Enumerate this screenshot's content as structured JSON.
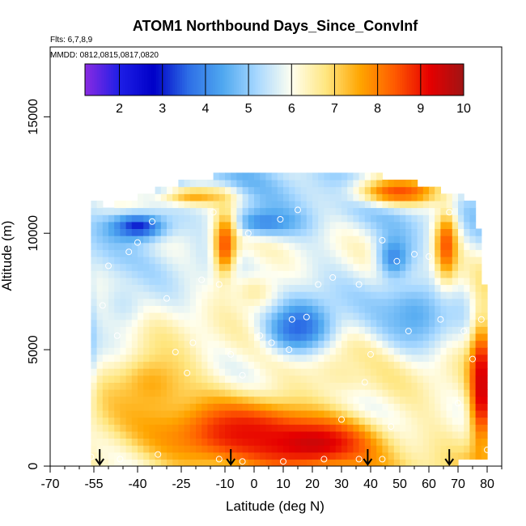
{
  "chart_data": {
    "type": "heatmap",
    "title": "ATOM1 Northbound Days_Since_ConvInf",
    "annotations": [
      "Flts: 6,7,8,9",
      "MMDD: 0812,0815,0817,0820"
    ],
    "xlabel": "Latitude (deg N)",
    "ylabel": "Altitude (m)",
    "xlim": [
      -70,
      85
    ],
    "ylim": [
      0,
      18000
    ],
    "x_ticks": [
      -70,
      -55,
      -40,
      -25,
      -10,
      0,
      10,
      20,
      30,
      40,
      50,
      60,
      70,
      80
    ],
    "x_tick_labels": [
      "-70",
      "-55",
      "-40",
      "-25",
      "-10",
      "0",
      "10",
      "20",
      "30",
      "40",
      "50",
      "60",
      "70",
      "80"
    ],
    "y_ticks": [
      0,
      5000,
      10000,
      15000
    ],
    "y_tick_labels": [
      "0",
      "5000",
      "10000",
      "15000"
    ],
    "colorbar": {
      "range": [
        1.2,
        10
      ],
      "ticks": [
        2,
        3,
        4,
        5,
        6,
        7,
        8,
        9,
        10
      ],
      "tick_labels": [
        "2",
        "3",
        "4",
        "5",
        "6",
        "7",
        "8",
        "9",
        "10"
      ],
      "colors": [
        "#8a2be2",
        "#1e1ee6",
        "#0000c8",
        "#2d6ee6",
        "#4fa8f0",
        "#a8d8ff",
        "#fffff0",
        "#ffe680",
        "#ffa500",
        "#ff5a00",
        "#e60000",
        "#a01414"
      ]
    },
    "coverage": [
      {
        "lat": -56,
        "alt_min": 0,
        "alt_max": 11400
      },
      {
        "lat": -50,
        "alt_min": 0,
        "alt_max": 11000
      },
      {
        "lat": -40,
        "alt_min": 0,
        "alt_max": 11400
      },
      {
        "lat": -30,
        "alt_min": 0,
        "alt_max": 11900
      },
      {
        "lat": -10,
        "alt_min": 0,
        "alt_max": 12400
      },
      {
        "lat": 40,
        "alt_min": 0,
        "alt_max": 12400
      },
      {
        "lat": 60,
        "alt_min": 0,
        "alt_max": 11900
      },
      {
        "lat": 76,
        "alt_min": 500,
        "alt_max": 11200
      },
      {
        "lat": 80,
        "alt_min": 500,
        "alt_max": 6500
      }
    ],
    "regions": [
      {
        "lat_center": -5,
        "alt_center": 1500,
        "lat_width": 55,
        "alt_width": 3000,
        "value": 9
      },
      {
        "lat_center": 20,
        "alt_center": 1000,
        "lat_width": 40,
        "alt_width": 2000,
        "value": 9.5
      },
      {
        "lat_center": -35,
        "alt_center": 3500,
        "lat_width": 30,
        "alt_width": 3500,
        "value": 7.5
      },
      {
        "lat_center": 78,
        "alt_center": 3500,
        "lat_width": 8,
        "alt_width": 6000,
        "value": 9.5
      },
      {
        "lat_center": -61,
        "alt_center": 5500,
        "lat_width": 10,
        "alt_width": 5000,
        "value": 3
      },
      {
        "lat_center": -40,
        "alt_center": 10300,
        "lat_width": 20,
        "alt_width": 1200,
        "value": 3
      },
      {
        "lat_center": 4,
        "alt_center": 10500,
        "lat_width": 25,
        "alt_width": 1200,
        "value": 4
      },
      {
        "lat_center": 15,
        "alt_center": 6000,
        "lat_width": 25,
        "alt_width": 2500,
        "value": 3.5
      },
      {
        "lat_center": 55,
        "alt_center": 6500,
        "lat_width": 25,
        "alt_width": 3000,
        "value": 4.5
      },
      {
        "lat_center": 48,
        "alt_center": 9000,
        "lat_width": 12,
        "alt_width": 2000,
        "value": 4
      },
      {
        "lat_center": 50,
        "alt_center": 11800,
        "lat_width": 30,
        "alt_width": 1200,
        "value": 8.5
      },
      {
        "lat_center": -20,
        "alt_center": 11600,
        "lat_width": 25,
        "alt_width": 800,
        "value": 7.5
      },
      {
        "lat_center": -10,
        "alt_center": 9500,
        "lat_width": 8,
        "alt_width": 3000,
        "value": 8.5
      },
      {
        "lat_center": 0,
        "alt_center": 7500,
        "lat_width": 20,
        "alt_width": 2000,
        "value": 6.5
      },
      {
        "lat_center": -45,
        "alt_center": 7000,
        "lat_width": 20,
        "alt_width": 3000,
        "value": 5.5
      },
      {
        "lat_center": 30,
        "alt_center": 4000,
        "lat_width": 25,
        "alt_width": 2000,
        "value": 6.5
      },
      {
        "lat_center": 66,
        "alt_center": 9500,
        "lat_width": 8,
        "alt_width": 3000,
        "value": 8.5
      }
    ],
    "sample_points": [
      [
        -60,
        6000
      ],
      [
        -58,
        5600
      ],
      [
        -52,
        6900
      ],
      [
        -50,
        8600
      ],
      [
        -47,
        5600
      ],
      [
        -43,
        9200
      ],
      [
        -40,
        9600
      ],
      [
        -35,
        10500
      ],
      [
        -30,
        7200
      ],
      [
        -27,
        4900
      ],
      [
        -23,
        4000
      ],
      [
        -21,
        5300
      ],
      [
        -18,
        8000
      ],
      [
        -14,
        10900
      ],
      [
        -12,
        7800
      ],
      [
        -8,
        4800
      ],
      [
        -4,
        3900
      ],
      [
        -2,
        10000
      ],
      [
        2,
        5600
      ],
      [
        6,
        5300
      ],
      [
        9,
        10600
      ],
      [
        12,
        5000
      ],
      [
        13,
        6300
      ],
      [
        15,
        11000
      ],
      [
        18,
        6400
      ],
      [
        22,
        7800
      ],
      [
        27,
        8100
      ],
      [
        30,
        2000
      ],
      [
        36,
        7800
      ],
      [
        38,
        3600
      ],
      [
        40,
        4800
      ],
      [
        44,
        9700
      ],
      [
        47,
        1700
      ],
      [
        49,
        8800
      ],
      [
        53,
        5800
      ],
      [
        55,
        9100
      ],
      [
        60,
        9000
      ],
      [
        64,
        6300
      ],
      [
        67,
        10900
      ],
      [
        70,
        2700
      ],
      [
        72,
        5800
      ],
      [
        75,
        4600
      ],
      [
        78,
        6300
      ],
      [
        80,
        700
      ],
      [
        -56,
        400
      ],
      [
        -46,
        300
      ],
      [
        -33,
        500
      ],
      [
        -12,
        300
      ],
      [
        -4,
        200
      ],
      [
        10,
        200
      ],
      [
        24,
        300
      ],
      [
        36,
        300
      ],
      [
        44,
        300
      ]
    ],
    "flight_markers_lat": [
      -53,
      -8,
      39,
      67
    ]
  }
}
